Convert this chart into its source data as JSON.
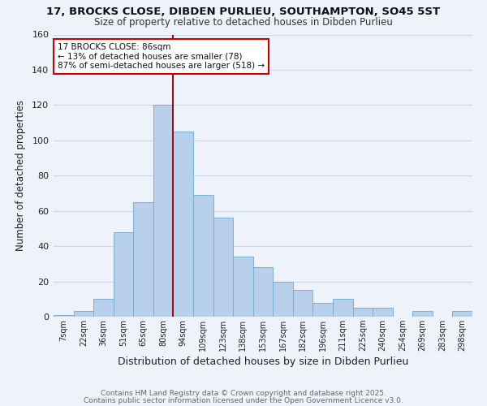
{
  "title1": "17, BROCKS CLOSE, DIBDEN PURLIEU, SOUTHAMPTON, SO45 5ST",
  "title2": "Size of property relative to detached houses in Dibden Purlieu",
  "xlabel": "Distribution of detached houses by size in Dibden Purlieu",
  "ylabel": "Number of detached properties",
  "bar_labels": [
    "7sqm",
    "22sqm",
    "36sqm",
    "51sqm",
    "65sqm",
    "80sqm",
    "94sqm",
    "109sqm",
    "123sqm",
    "138sqm",
    "153sqm",
    "167sqm",
    "182sqm",
    "196sqm",
    "211sqm",
    "225sqm",
    "240sqm",
    "254sqm",
    "269sqm",
    "283sqm",
    "298sqm"
  ],
  "bar_values": [
    1,
    3,
    10,
    48,
    65,
    120,
    105,
    69,
    56,
    34,
    28,
    20,
    15,
    8,
    10,
    5,
    5,
    0,
    3,
    0,
    3
  ],
  "bar_color": "#b8d0eb",
  "bar_edge_color": "#7aafd4",
  "grid_color": "#c8d8f0",
  "bg_color": "#eef2fb",
  "annotation_text": "17 BROCKS CLOSE: 86sqm\n← 13% of detached houses are smaller (78)\n87% of semi-detached houses are larger (518) →",
  "vline_x": 5.5,
  "vline_color": "#aa0000",
  "annotation_box_edge": "#cc0000",
  "ylim": [
    0,
    160
  ],
  "yticks": [
    0,
    20,
    40,
    60,
    80,
    100,
    120,
    140,
    160
  ],
  "footer1": "Contains HM Land Registry data © Crown copyright and database right 2025.",
  "footer2": "Contains public sector information licensed under the Open Government Licence v3.0."
}
